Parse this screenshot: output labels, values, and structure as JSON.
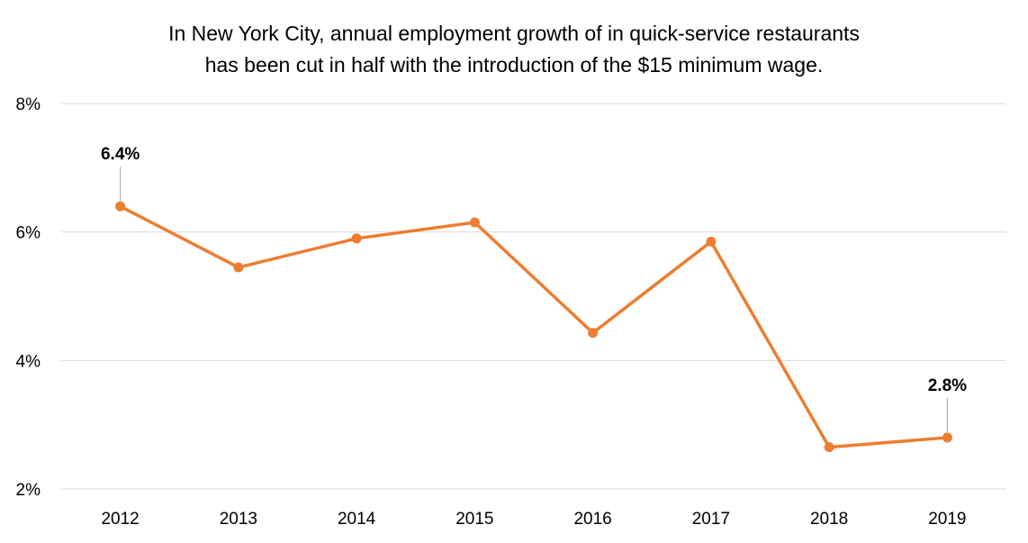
{
  "chart_data": {
    "type": "line",
    "title": "In New York City, annual employment growth of in quick-service restaurants has been cut in half with the introduction of the $15 minimum wage.",
    "title_lines": [
      "In New York City, annual employment growth of in quick-service restaurants",
      "has been cut in half with the introduction of the $15 minimum wage."
    ],
    "categories": [
      "2012",
      "2013",
      "2014",
      "2015",
      "2016",
      "2017",
      "2018",
      "2019"
    ],
    "series": [
      {
        "values": [
          6.4,
          5.45,
          5.9,
          6.15,
          4.43,
          5.85,
          2.65,
          2.8
        ],
        "color": "#ed7d31"
      }
    ],
    "ylim": [
      2,
      8
    ],
    "yticks": [
      2,
      4,
      6,
      8
    ],
    "ytick_labels": [
      "2%",
      "4%",
      "6%",
      "8%"
    ],
    "grid": true,
    "data_labels": [
      {
        "index": 0,
        "text": "6.4%"
      },
      {
        "index": 7,
        "text": "2.8%"
      }
    ],
    "xlabel": "",
    "ylabel": ""
  }
}
